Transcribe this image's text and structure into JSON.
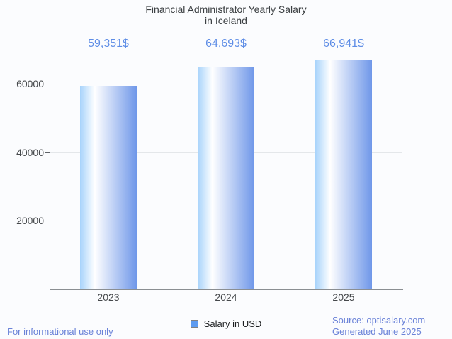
{
  "title": {
    "line1": "Financial Administrator Yearly Salary",
    "line2": "in Iceland"
  },
  "chart_data": {
    "type": "bar",
    "categories": [
      "2023",
      "2024",
      "2025"
    ],
    "values": [
      59351,
      64693,
      66941
    ],
    "value_labels": [
      "59,351$",
      "64,693$",
      "66,941$"
    ],
    "series": [
      {
        "name": "Salary in USD",
        "values": [
          59351,
          64693,
          66941
        ]
      }
    ],
    "title": "Financial Administrator Yearly Salary in Iceland",
    "xlabel": "",
    "ylabel": "",
    "yticks": [
      20000,
      40000,
      60000
    ],
    "ytick_labels": [
      "20000",
      "40000",
      "60000"
    ],
    "ylim": [
      0,
      70000
    ],
    "grid": true,
    "legend_position": "bottom"
  },
  "legend": {
    "label": "Salary in USD"
  },
  "footer": {
    "disclaimer": "For informational use only",
    "source": "Source: optisalary.com",
    "generated": "Generated June 2025"
  },
  "colors": {
    "annotation_blue": "#5e8de6",
    "footer_blue": "#6a82d8",
    "title_color": "#3c4043",
    "axis_label_color": "#45484b",
    "gridline_color": "#e4e7ea",
    "bar_gradient_left": "#a7d3fb",
    "bar_gradient_highlight": "#ffffff",
    "bar_gradient_right": "#6f97e9",
    "legend_swatch_fill": "#5d9bf0",
    "legend_swatch_border": "#808080",
    "background": "#fbfcfe"
  }
}
